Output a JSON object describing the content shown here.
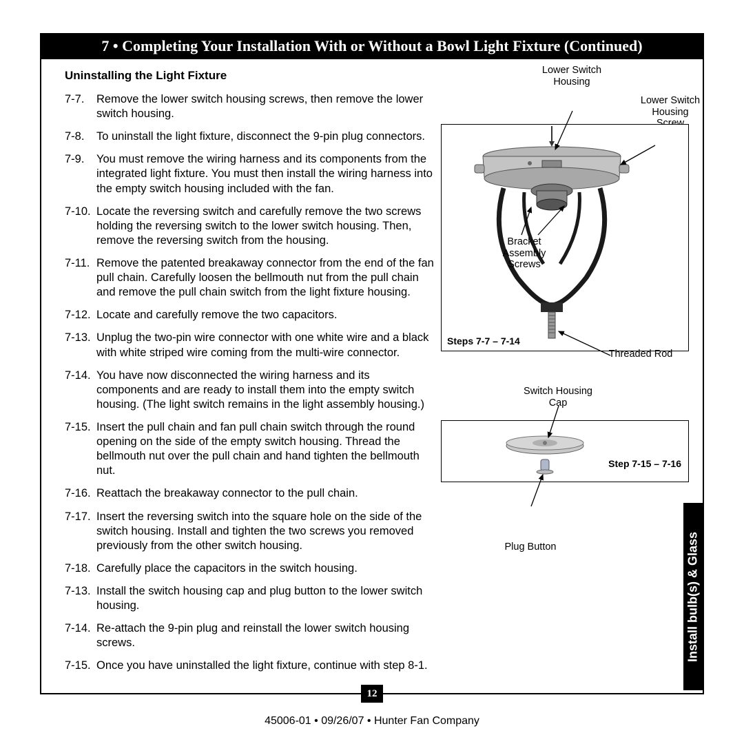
{
  "title_bar": "7 • Completing Your Installation With or Without a Bowl Light Fixture (Continued)",
  "subhead": "Uninstalling the Light Fixture",
  "steps": [
    {
      "n": "7-7.",
      "t": "Remove the lower switch housing screws, then remove the lower switch housing."
    },
    {
      "n": "7-8.",
      "t": "To uninstall the light fixture, disconnect the 9-pin plug connectors."
    },
    {
      "n": "7-9.",
      "t": "You must remove the wiring harness and its components from the integrated light fixture. You must then install the wiring harness into the empty switch housing included with the fan."
    },
    {
      "n": "7-10.",
      "t": "Locate the reversing switch and carefully remove the two screws holding the reversing switch to the lower switch housing. Then, remove the reversing switch from the housing."
    },
    {
      "n": "7-11.",
      "t": "Remove the patented breakaway connector from the end of the fan pull chain. Carefully loosen the bellmouth nut from the pull chain and remove the pull chain switch from the light fixture housing."
    },
    {
      "n": "7-12.",
      "t": "Locate and carefully remove the two capacitors."
    },
    {
      "n": "7-13.",
      "t": "Unplug the two-pin wire connector with one white wire and a black with white striped wire coming from the multi-wire connector."
    },
    {
      "n": "7-14.",
      "t": "You have now disconnected the wiring harness and its components and are ready to install them into the empty switch housing. (The light switch remains in the light assembly housing.)"
    },
    {
      "n": "7-15.",
      "t": "Insert the pull chain and fan pull chain switch through the round opening on the side of the empty switch housing. Thread the bellmouth nut over the pull chain and hand tighten the bellmouth nut."
    },
    {
      "n": "7-16.",
      "t": "Reattach the breakaway connector to the pull chain."
    },
    {
      "n": "7-17.",
      "t": "Insert the reversing switch into the square hole on the side of the switch housing. Install and tighten the two screws you removed previously from the other switch housing."
    },
    {
      "n": "7-18.",
      "t": "Carefully place the capacitors in the switch housing."
    },
    {
      "n": "7-13.",
      "t": "Install the switch housing cap and plug button to the lower switch housing."
    },
    {
      "n": "7-14.",
      "t": "Re-attach the 9-pin plug and reinstall the lower switch housing screws."
    },
    {
      "n": "7-15.",
      "t": "Once you have uninstalled the light fixture, continue with step 8-1."
    }
  ],
  "labels": {
    "lower_switch_housing": "Lower Switch\nHousing",
    "lower_switch_housing_screw": "Lower Switch\nHousing\nScrew",
    "bracket_assembly_screws": "Bracket\nAssembly\nScrews",
    "threaded_rod": "Threaded Rod",
    "switch_housing_cap": "Switch Housing\nCap",
    "plug_button": "Plug Button",
    "steps_top": "Steps 7-7 – 7-14",
    "steps_bottom": "Step 7-15 – 7-16"
  },
  "side_tab": "Install bulb(s) & Glass",
  "page_num": "12",
  "footer": "45006-01  •  09/26/07  •  Hunter Fan Company",
  "colors": {
    "housing_light": "#c8c8c8",
    "housing_dark": "#8a8a8a",
    "bracket": "#2a2a2a",
    "cap_light": "#d0d0d0",
    "cap_dark": "#909090"
  }
}
